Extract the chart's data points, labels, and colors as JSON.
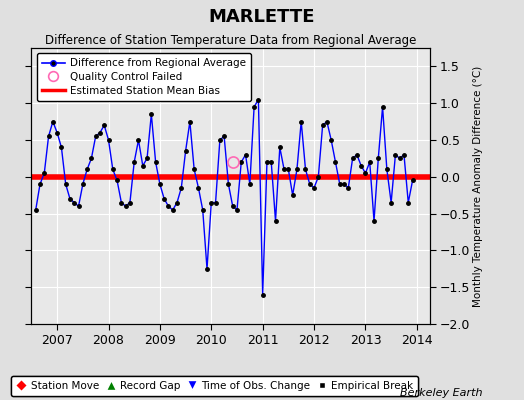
{
  "title": "MARLETTE",
  "subtitle": "Difference of Station Temperature Data from Regional Average",
  "ylabel_right": "Monthly Temperature Anomaly Difference (°C)",
  "xlim": [
    2006.5,
    2014.25
  ],
  "ylim": [
    -2.0,
    1.75
  ],
  "yticks": [
    -2.0,
    -1.5,
    -1.0,
    -0.5,
    0.0,
    0.5,
    1.0,
    1.5
  ],
  "xticks": [
    2007,
    2008,
    2009,
    2010,
    2011,
    2012,
    2013,
    2014
  ],
  "background_color": "#e8e8e8",
  "fig_background_color": "#e0e0e0",
  "line_color": "#0000ff",
  "bias_color": "#ff0000",
  "marker_color": "#000000",
  "watermark": "Berkeley Earth",
  "bias_line_value": 0.0,
  "data": [
    [
      2006.5833,
      -0.45
    ],
    [
      2006.6667,
      -0.1
    ],
    [
      2006.75,
      0.05
    ],
    [
      2006.8333,
      0.55
    ],
    [
      2006.9167,
      0.75
    ],
    [
      2007.0,
      0.6
    ],
    [
      2007.0833,
      0.4
    ],
    [
      2007.1667,
      -0.1
    ],
    [
      2007.25,
      -0.3
    ],
    [
      2007.3333,
      -0.35
    ],
    [
      2007.4167,
      -0.4
    ],
    [
      2007.5,
      -0.1
    ],
    [
      2007.5833,
      0.1
    ],
    [
      2007.6667,
      0.25
    ],
    [
      2007.75,
      0.55
    ],
    [
      2007.8333,
      0.6
    ],
    [
      2007.9167,
      0.7
    ],
    [
      2008.0,
      0.5
    ],
    [
      2008.0833,
      0.1
    ],
    [
      2008.1667,
      -0.05
    ],
    [
      2008.25,
      -0.35
    ],
    [
      2008.3333,
      -0.4
    ],
    [
      2008.4167,
      -0.35
    ],
    [
      2008.5,
      0.2
    ],
    [
      2008.5833,
      0.5
    ],
    [
      2008.6667,
      0.15
    ],
    [
      2008.75,
      0.25
    ],
    [
      2008.8333,
      0.85
    ],
    [
      2008.9167,
      0.2
    ],
    [
      2009.0,
      -0.1
    ],
    [
      2009.0833,
      -0.3
    ],
    [
      2009.1667,
      -0.4
    ],
    [
      2009.25,
      -0.45
    ],
    [
      2009.3333,
      -0.35
    ],
    [
      2009.4167,
      -0.15
    ],
    [
      2009.5,
      0.35
    ],
    [
      2009.5833,
      0.75
    ],
    [
      2009.6667,
      0.1
    ],
    [
      2009.75,
      -0.15
    ],
    [
      2009.8333,
      -0.45
    ],
    [
      2009.9167,
      -1.25
    ],
    [
      2010.0,
      -0.35
    ],
    [
      2010.0833,
      -0.35
    ],
    [
      2010.1667,
      0.5
    ],
    [
      2010.25,
      0.55
    ],
    [
      2010.3333,
      -0.1
    ],
    [
      2010.4167,
      -0.4
    ],
    [
      2010.5,
      -0.45
    ],
    [
      2010.5833,
      0.2
    ],
    [
      2010.6667,
      0.3
    ],
    [
      2010.75,
      -0.1
    ],
    [
      2010.8333,
      0.95
    ],
    [
      2010.9167,
      1.05
    ],
    [
      2011.0,
      -1.6
    ],
    [
      2011.0833,
      0.2
    ],
    [
      2011.1667,
      0.2
    ],
    [
      2011.25,
      -0.6
    ],
    [
      2011.3333,
      0.4
    ],
    [
      2011.4167,
      0.1
    ],
    [
      2011.5,
      0.1
    ],
    [
      2011.5833,
      -0.25
    ],
    [
      2011.6667,
      0.1
    ],
    [
      2011.75,
      0.75
    ],
    [
      2011.8333,
      0.1
    ],
    [
      2011.9167,
      -0.1
    ],
    [
      2012.0,
      -0.15
    ],
    [
      2012.0833,
      0.0
    ],
    [
      2012.1667,
      0.7
    ],
    [
      2012.25,
      0.75
    ],
    [
      2012.3333,
      0.5
    ],
    [
      2012.4167,
      0.2
    ],
    [
      2012.5,
      -0.1
    ],
    [
      2012.5833,
      -0.1
    ],
    [
      2012.6667,
      -0.15
    ],
    [
      2012.75,
      0.25
    ],
    [
      2012.8333,
      0.3
    ],
    [
      2012.9167,
      0.15
    ],
    [
      2013.0,
      0.05
    ],
    [
      2013.0833,
      0.2
    ],
    [
      2013.1667,
      -0.6
    ],
    [
      2013.25,
      0.25
    ],
    [
      2013.3333,
      0.95
    ],
    [
      2013.4167,
      0.1
    ],
    [
      2013.5,
      -0.35
    ],
    [
      2013.5833,
      0.3
    ],
    [
      2013.6667,
      0.25
    ],
    [
      2013.75,
      0.3
    ],
    [
      2013.8333,
      -0.35
    ],
    [
      2013.9167,
      -0.05
    ]
  ],
  "qc_failed": [
    [
      2010.4167,
      0.2
    ]
  ]
}
